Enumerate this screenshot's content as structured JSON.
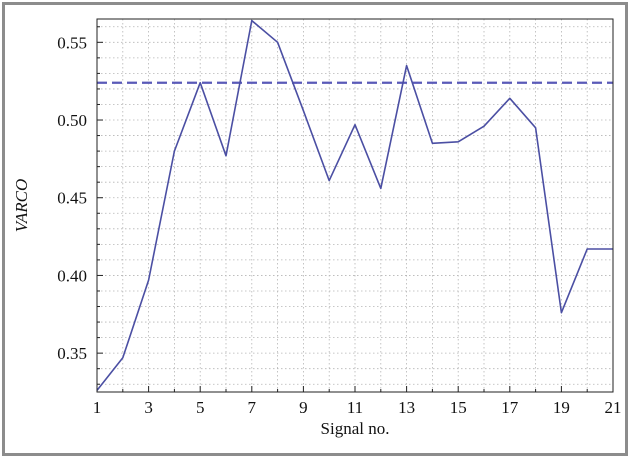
{
  "chart_data": {
    "type": "line",
    "title": "",
    "xlabel": "Signal no.",
    "ylabel": "VARCO",
    "xlim": [
      1,
      21
    ],
    "ylim": [
      0.325,
      0.565
    ],
    "grid": true,
    "x_ticks": [
      1,
      3,
      5,
      7,
      9,
      11,
      13,
      15,
      17,
      19,
      21
    ],
    "x_tick_labels": [
      "1",
      "3",
      "5",
      "7",
      "9",
      "11",
      "13",
      "15",
      "17",
      "19",
      "21"
    ],
    "y_ticks": [
      0.35,
      0.4,
      0.45,
      0.5,
      0.55
    ],
    "y_tick_labels": [
      "0.35",
      "0.40",
      "0.45",
      "0.50",
      "0.55"
    ],
    "series": [
      {
        "x": [
          1,
          2,
          3,
          4,
          5,
          6,
          7,
          8,
          9,
          10,
          11,
          12,
          13,
          14,
          15,
          16,
          17,
          18,
          19,
          20,
          21
        ],
        "values": [
          0.326,
          0.347,
          0.397,
          0.48,
          0.524,
          0.477,
          0.564,
          0.55,
          0.506,
          0.461,
          0.497,
          0.456,
          0.535,
          0.485,
          0.486,
          0.496,
          0.514,
          0.495,
          0.376,
          0.417,
          0.417
        ],
        "color": "#4b4fa3",
        "style": "solid"
      }
    ],
    "reference_lines": [
      {
        "y": 0.524,
        "color": "#5a5ab8",
        "style": "dashed"
      }
    ]
  }
}
